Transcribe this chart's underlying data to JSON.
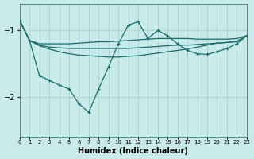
{
  "xlabel": "Humidex (Indice chaleur)",
  "bg_color": "#c8eae8",
  "line_color": "#1a6b6b",
  "grid_color": "#aed4d2",
  "xlim": [
    0,
    23
  ],
  "ylim": [
    -2.6,
    -0.6
  ],
  "yticks": [
    -2,
    -1
  ],
  "xticks": [
    0,
    1,
    2,
    3,
    4,
    5,
    6,
    7,
    8,
    9,
    10,
    11,
    12,
    13,
    14,
    15,
    16,
    17,
    18,
    19,
    20,
    21,
    22,
    23
  ],
  "line1_y": [
    -0.85,
    -1.15,
    -1.2,
    -1.2,
    -1.2,
    -1.2,
    -1.19,
    -1.18,
    -1.17,
    -1.17,
    -1.16,
    -1.15,
    -1.14,
    -1.13,
    -1.12,
    -1.12,
    -1.12,
    -1.12,
    -1.13,
    -1.13,
    -1.13,
    -1.13,
    -1.12,
    -1.08
  ],
  "line2_y": [
    -0.85,
    -1.15,
    -1.22,
    -1.25,
    -1.26,
    -1.27,
    -1.27,
    -1.27,
    -1.27,
    -1.27,
    -1.27,
    -1.27,
    -1.26,
    -1.25,
    -1.24,
    -1.23,
    -1.22,
    -1.22,
    -1.21,
    -1.2,
    -1.19,
    -1.18,
    -1.17,
    -1.08
  ],
  "line3_y": [
    -0.85,
    -1.15,
    -1.23,
    -1.28,
    -1.32,
    -1.35,
    -1.37,
    -1.38,
    -1.39,
    -1.4,
    -1.4,
    -1.39,
    -1.38,
    -1.36,
    -1.34,
    -1.32,
    -1.3,
    -1.28,
    -1.25,
    -1.22,
    -1.19,
    -1.18,
    -1.16,
    -1.08
  ],
  "line4_y": [
    -0.85,
    -1.15,
    -1.68,
    -1.75,
    -1.82,
    -1.88,
    -2.1,
    -2.23,
    -1.88,
    -1.55,
    -1.2,
    -0.92,
    -0.87,
    -1.12,
    -1.0,
    -1.08,
    -1.2,
    -1.3,
    -1.35,
    -1.36,
    -1.32,
    -1.27,
    -1.2,
    -1.08
  ],
  "line4_marker_x": [
    0,
    1,
    2,
    3,
    4,
    5,
    6,
    7,
    8,
    9,
    10,
    11,
    12,
    13,
    14,
    15,
    16,
    17,
    18,
    19,
    20,
    21,
    22,
    23
  ]
}
